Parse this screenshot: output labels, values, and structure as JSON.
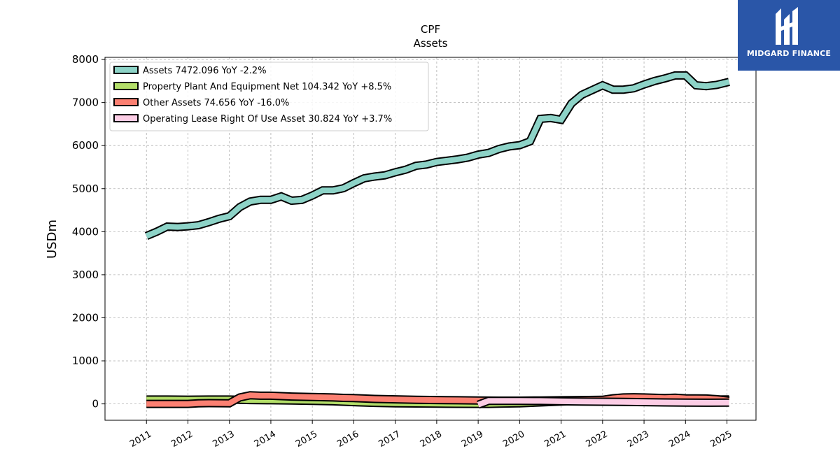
{
  "chart_data": {
    "type": "line",
    "title": "CPF",
    "subtitle": "Assets",
    "ylabel": "USDm",
    "xlabel": "",
    "ylim": [
      -380,
      8050
    ],
    "xlim": [
      2010.0,
      2025.7
    ],
    "yticks": [
      0,
      1000,
      2000,
      3000,
      4000,
      5000,
      6000,
      7000,
      8000
    ],
    "xticks": [
      "2011",
      "2012",
      "2013",
      "2014",
      "2015",
      "2016",
      "2017",
      "2018",
      "2019",
      "2020",
      "2021",
      "2022",
      "2023",
      "2024",
      "2025"
    ],
    "grid": true,
    "legend_position": "top-left",
    "series": [
      {
        "name": "Assets",
        "legend_label": "Assets  7472.096 YoY -2.2%",
        "color": "#8dd3c7",
        "points": [
          [
            2011.0,
            3900
          ],
          [
            2011.25,
            4000
          ],
          [
            2011.5,
            4120
          ],
          [
            2011.75,
            4110
          ],
          [
            2012.0,
            4125
          ],
          [
            2012.25,
            4150
          ],
          [
            2012.5,
            4220
          ],
          [
            2012.75,
            4300
          ],
          [
            2013.0,
            4360
          ],
          [
            2013.25,
            4570
          ],
          [
            2013.5,
            4700
          ],
          [
            2013.75,
            4740
          ],
          [
            2014.0,
            4740
          ],
          [
            2014.25,
            4820
          ],
          [
            2014.5,
            4720
          ],
          [
            2014.75,
            4740
          ],
          [
            2015.0,
            4840
          ],
          [
            2015.25,
            4960
          ],
          [
            2015.5,
            4960
          ],
          [
            2015.75,
            5010
          ],
          [
            2016.0,
            5130
          ],
          [
            2016.25,
            5240
          ],
          [
            2016.5,
            5280
          ],
          [
            2016.75,
            5310
          ],
          [
            2017.0,
            5380
          ],
          [
            2017.25,
            5440
          ],
          [
            2017.5,
            5530
          ],
          [
            2017.75,
            5560
          ],
          [
            2018.0,
            5620
          ],
          [
            2018.25,
            5650
          ],
          [
            2018.5,
            5680
          ],
          [
            2018.75,
            5720
          ],
          [
            2019.0,
            5790
          ],
          [
            2019.25,
            5830
          ],
          [
            2019.5,
            5920
          ],
          [
            2019.75,
            5980
          ],
          [
            2020.0,
            6010
          ],
          [
            2020.25,
            6100
          ],
          [
            2020.5,
            6620
          ],
          [
            2020.75,
            6640
          ],
          [
            2021.0,
            6600
          ],
          [
            2021.25,
            6980
          ],
          [
            2021.5,
            7180
          ],
          [
            2021.75,
            7290
          ],
          [
            2022.0,
            7400
          ],
          [
            2022.25,
            7300
          ],
          [
            2022.5,
            7300
          ],
          [
            2022.75,
            7330
          ],
          [
            2023.0,
            7420
          ],
          [
            2023.25,
            7500
          ],
          [
            2023.5,
            7560
          ],
          [
            2023.75,
            7630
          ],
          [
            2024.0,
            7630
          ],
          [
            2024.25,
            7400
          ],
          [
            2024.5,
            7380
          ],
          [
            2024.75,
            7410
          ],
          [
            2025.05,
            7480
          ]
        ]
      },
      {
        "name": "Property Plant And Equipment Net",
        "legend_label": "Property Plant And Equipment Net  104.342 YoY +8.5%",
        "color": "#b3de69",
        "points": [
          [
            2011.0,
            100
          ],
          [
            2011.5,
            100
          ],
          [
            2012.0,
            98
          ],
          [
            2012.5,
            100
          ],
          [
            2013.0,
            100
          ],
          [
            2013.25,
            95
          ],
          [
            2013.5,
            90
          ],
          [
            2014.0,
            85
          ],
          [
            2014.5,
            80
          ],
          [
            2015.0,
            70
          ],
          [
            2015.5,
            60
          ],
          [
            2016.0,
            40
          ],
          [
            2016.5,
            25
          ],
          [
            2017.0,
            15
          ],
          [
            2017.5,
            10
          ],
          [
            2018.0,
            5
          ],
          [
            2018.5,
            2
          ],
          [
            2019.0,
            0
          ],
          [
            2019.25,
            0
          ],
          [
            2019.5,
            5
          ],
          [
            2020.0,
            15
          ],
          [
            2020.5,
            35
          ],
          [
            2021.0,
            55
          ],
          [
            2021.5,
            70
          ],
          [
            2022.0,
            80
          ],
          [
            2022.5,
            85
          ],
          [
            2023.0,
            90
          ],
          [
            2023.5,
            92
          ],
          [
            2024.0,
            95
          ],
          [
            2024.5,
            100
          ],
          [
            2025.05,
            104
          ]
        ]
      },
      {
        "name": "Other Assets",
        "legend_label": "Other Assets  74.656 YoY -16.0%",
        "color": "#fb8072",
        "points": [
          [
            2011.0,
            0
          ],
          [
            2011.5,
            0
          ],
          [
            2012.0,
            0
          ],
          [
            2012.25,
            15
          ],
          [
            2012.5,
            18
          ],
          [
            2013.0,
            15
          ],
          [
            2013.25,
            150
          ],
          [
            2013.5,
            200
          ],
          [
            2013.75,
            190
          ],
          [
            2014.0,
            190
          ],
          [
            2014.5,
            170
          ],
          [
            2015.0,
            160
          ],
          [
            2015.5,
            150
          ],
          [
            2015.75,
            140
          ],
          [
            2016.0,
            135
          ],
          [
            2016.5,
            115
          ],
          [
            2017.0,
            105
          ],
          [
            2017.5,
            95
          ],
          [
            2018.0,
            90
          ],
          [
            2018.5,
            85
          ],
          [
            2019.0,
            80
          ],
          [
            2019.5,
            75
          ],
          [
            2020.0,
            75
          ],
          [
            2020.5,
            80
          ],
          [
            2021.0,
            85
          ],
          [
            2021.5,
            90
          ],
          [
            2022.0,
            95
          ],
          [
            2022.25,
            130
          ],
          [
            2022.5,
            150
          ],
          [
            2022.75,
            155
          ],
          [
            2023.0,
            150
          ],
          [
            2023.5,
            135
          ],
          [
            2023.75,
            145
          ],
          [
            2024.0,
            130
          ],
          [
            2024.5,
            125
          ],
          [
            2024.75,
            110
          ],
          [
            2025.05,
            75
          ]
        ]
      },
      {
        "name": "Operating Lease Right Of Use Asset",
        "legend_label": "Operating Lease Right Of Use Asset  30.824 YoY +3.7%",
        "color": "#fccde5",
        "points": [
          [
            2019.0,
            -20
          ],
          [
            2019.25,
            70
          ],
          [
            2019.5,
            70
          ],
          [
            2020.0,
            70
          ],
          [
            2020.5,
            68
          ],
          [
            2021.0,
            60
          ],
          [
            2021.5,
            55
          ],
          [
            2022.0,
            50
          ],
          [
            2022.5,
            45
          ],
          [
            2023.0,
            40
          ],
          [
            2023.5,
            35
          ],
          [
            2024.0,
            30
          ],
          [
            2024.5,
            28
          ],
          [
            2025.05,
            31
          ]
        ]
      }
    ]
  },
  "brand": {
    "name": "MIDGARD FINANCE",
    "logo_icon": "midgard-logo-icon",
    "color": "#2a56a8"
  }
}
